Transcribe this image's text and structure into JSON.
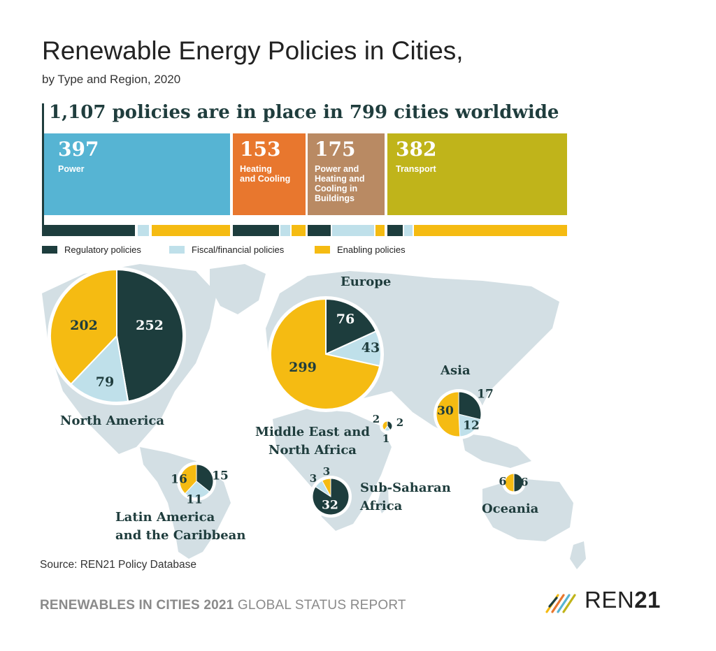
{
  "header": {
    "title": "Renewable Energy Policies in Cities,",
    "subtitle": "by Type and Region, 2020",
    "headline": "1,107 policies are in place in 799 cities worldwide"
  },
  "categories": [
    {
      "value": "397",
      "label": [
        "Power"
      ],
      "color": "#56b4d3"
    },
    {
      "value": "153",
      "label": [
        "Heating",
        "and Cooling"
      ],
      "color": "#e8772e"
    },
    {
      "value": "175",
      "label": [
        "Power and",
        "Heating and",
        "Cooling in",
        "Buildings"
      ],
      "color": "#b98a63"
    },
    {
      "value": "382",
      "label": [
        "Transport"
      ],
      "color": "#c0b41a"
    }
  ],
  "legend": {
    "regulatory": "Regulatory policies",
    "fiscal": "Fiscal/financial policies",
    "enabling": "Enabling policies"
  },
  "colors": {
    "regulatory": "#1d3d3d",
    "fiscal": "#bfe0ea",
    "enabling": "#f5bb12",
    "map": "#d3dfe4"
  },
  "chart_data": {
    "type": "pie",
    "title": "Renewable Energy Policies in Cities, by Type and Region, 2020",
    "series_names": [
      "Regulatory policies",
      "Fiscal/financial policies",
      "Enabling policies"
    ],
    "regions": [
      {
        "name": "North America",
        "name_lines": [
          "North America"
        ],
        "regulatory": 252,
        "fiscal": 79,
        "enabling": 202
      },
      {
        "name": "Europe",
        "name_lines": [
          "Europe"
        ],
        "regulatory": 76,
        "fiscal": 43,
        "enabling": 299
      },
      {
        "name": "Asia",
        "name_lines": [
          "Asia"
        ],
        "regulatory": 17,
        "fiscal": 12,
        "enabling": 30
      },
      {
        "name": "Middle East and North Africa",
        "name_lines": [
          "Middle East and",
          "North Africa"
        ],
        "regulatory": 2,
        "fiscal": 1,
        "enabling": 2
      },
      {
        "name": "Sub-Saharan Africa",
        "name_lines": [
          "Sub-Saharan",
          "Africa"
        ],
        "regulatory": 32,
        "fiscal": 3,
        "enabling": 3
      },
      {
        "name": "Latin America and the Caribbean",
        "name_lines": [
          "Latin America",
          "and the Caribbean"
        ],
        "regulatory": 15,
        "fiscal": 11,
        "enabling": 16
      },
      {
        "name": "Oceania",
        "name_lines": [
          "Oceania"
        ],
        "regulatory": 6,
        "fiscal": 0,
        "enabling": 6
      }
    ]
  },
  "source": "Source: REN21 Policy Database",
  "footer": {
    "bold": "RENEWABLES IN CITIES 2021",
    "rest": " GLOBAL STATUS REPORT"
  },
  "logo": {
    "text_a": "REN",
    "text_b": "21"
  }
}
